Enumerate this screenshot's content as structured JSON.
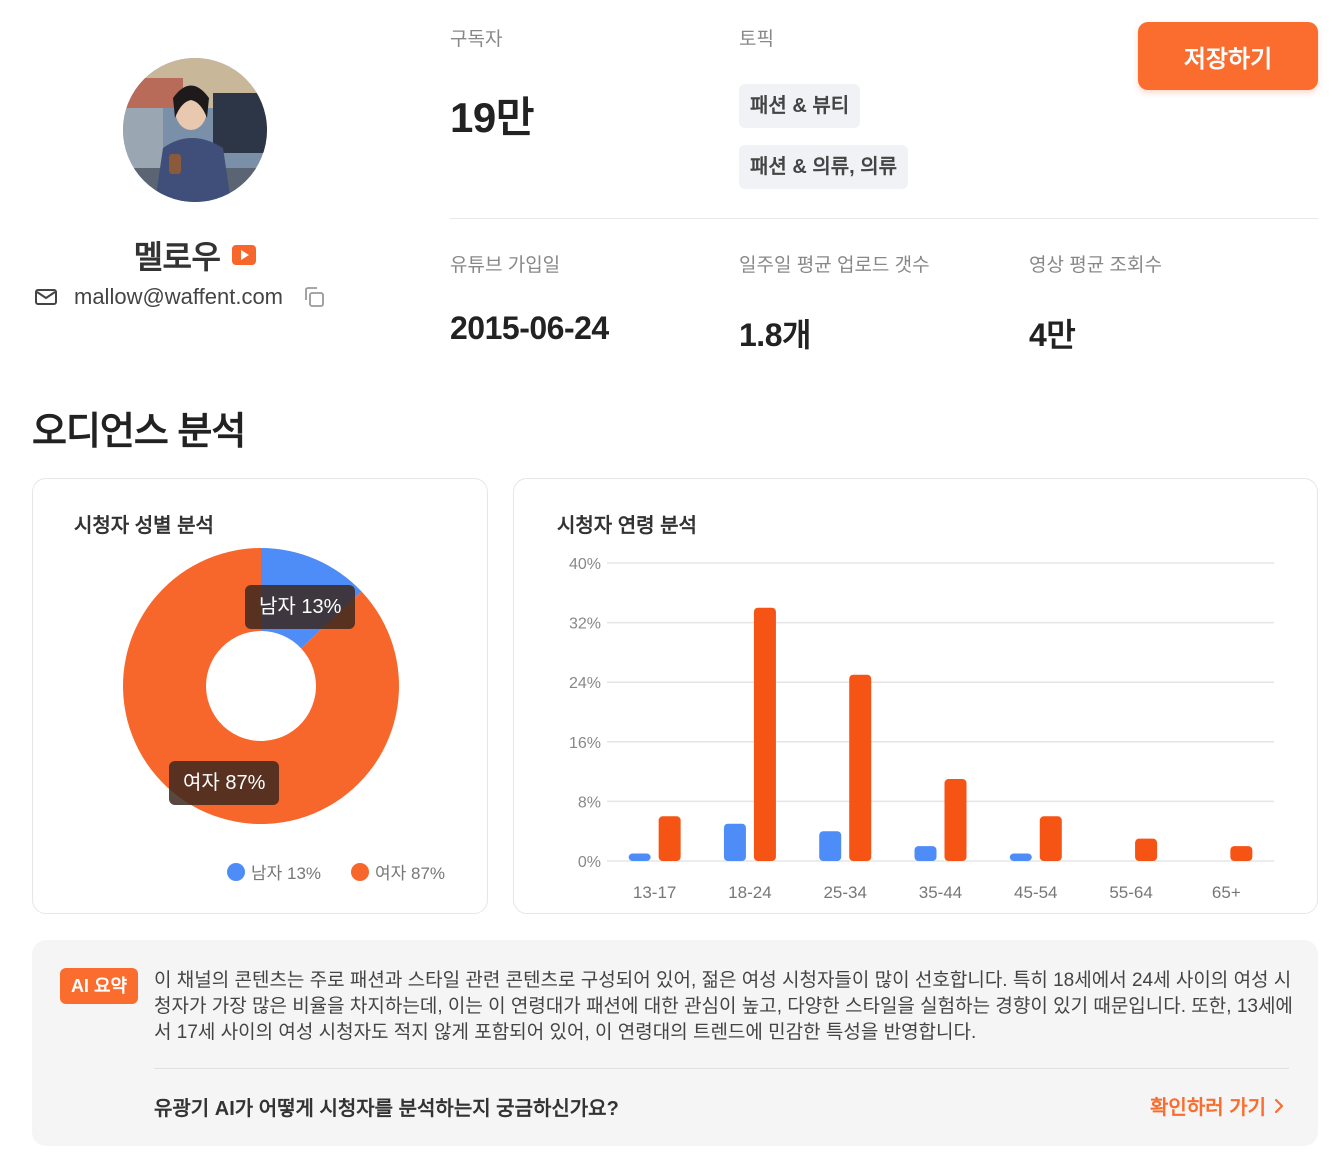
{
  "profile": {
    "name": "멜로우",
    "email": "mallow@waffent.com"
  },
  "stats": {
    "subscribers_label": "구독자",
    "subscribers_value": "19만",
    "topics_label": "토픽",
    "topics": [
      "패션 & 뷰티",
      "패션 & 의류, 의류"
    ],
    "joined_label": "유튜브 가입일",
    "joined_value": "2015-06-24",
    "weekly_label": "일주일 평균 업로드 갯수",
    "weekly_value": "1.8개",
    "views_label": "영상 평균 조회수",
    "views_value": "4만"
  },
  "actions": {
    "save_label": "저장하기"
  },
  "section": {
    "title": "오디언스 분석"
  },
  "colors": {
    "accent": "#fa6d2e",
    "male": "#4e8cf7",
    "female": "#f7672b",
    "female_bar": "#f65414"
  },
  "chart_data": [
    {
      "type": "pie",
      "title": "시청자 성별 분석",
      "slices": [
        {
          "name": "남자",
          "value": 13,
          "label": "남자 13%"
        },
        {
          "name": "여자",
          "value": 87,
          "label": "여자 87%"
        }
      ],
      "legend": [
        "남자 13%",
        "여자 87%"
      ],
      "legend_position": "bottom"
    },
    {
      "type": "bar",
      "title": "시청자 연령 분석",
      "categories": [
        "13-17",
        "18-24",
        "25-34",
        "35-44",
        "45-54",
        "55-64",
        "65+"
      ],
      "series": [
        {
          "name": "남자",
          "values": [
            1,
            5,
            4,
            2,
            1,
            0,
            0
          ]
        },
        {
          "name": "여자",
          "values": [
            6,
            34,
            25,
            11,
            6,
            3,
            2
          ]
        }
      ],
      "ylim": [
        0,
        40
      ],
      "yticks": [
        "0%",
        "8%",
        "16%",
        "24%",
        "32%",
        "40%"
      ],
      "grid": true
    }
  ],
  "ai": {
    "badge": "AI 요약",
    "summary": "이 채널의 콘텐츠는 주로 패션과 스타일 관련 콘텐츠로 구성되어 있어, 젊은 여성 시청자들이 많이 선호합니다. 특히 18세에서 24세 사이의 여성 시청자가 가장 많은 비율을 차지하는데, 이는 이 연령대가 패션에 대한 관심이 높고, 다양한 스타일을 실험하는 경향이 있기 때문입니다. 또한, 13세에서 17세 사이의 여성 시청자도 적지 않게 포함되어 있어, 이 연령대의 트렌드에 민감한 특성을 반영합니다.",
    "question": "유광기 AI가 어떻게 시청자를 분석하는지 궁금하신가요?",
    "link_label": "확인하러 가기"
  }
}
